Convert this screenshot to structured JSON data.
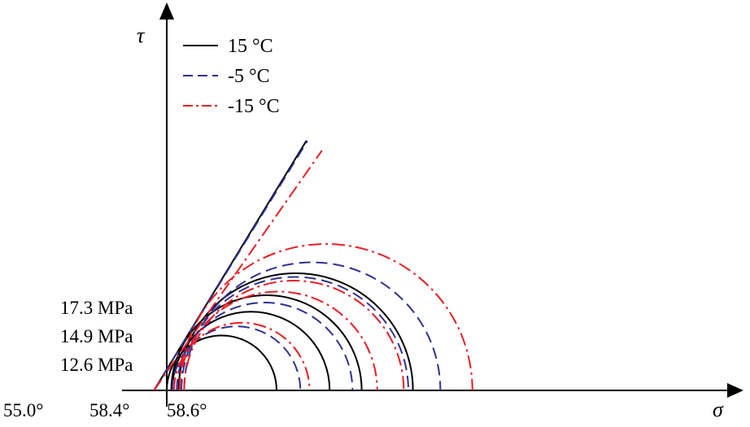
{
  "chart_data": {
    "type": "line",
    "title": "",
    "xlabel": "σ",
    "ylabel": "τ",
    "grid": false,
    "legend_placement": "top-left",
    "series": [
      {
        "name": "15 °C",
        "color": "#000000",
        "dash": "solid",
        "circles": [
          {
            "center": 3.0,
            "radius": 3.0
          },
          {
            "center": 4.6,
            "radius": 4.3
          },
          {
            "center": 5.45,
            "radius": 5.2
          },
          {
            "center": 7.05,
            "radius": 6.4
          }
        ],
        "envelope": {
          "x_intercept": -0.7,
          "friction_angle_deg": 58.6,
          "cohesion_MPa": 12.6
        }
      },
      {
        "name": "-5 °C",
        "color": "#2e3192",
        "dash": "dashed",
        "circles": [
          {
            "center": 3.8,
            "radius": 3.5
          },
          {
            "center": 5.35,
            "radius": 4.8
          },
          {
            "center": 7.0,
            "radius": 6.2
          },
          {
            "center": 7.95,
            "radius": 7.0
          }
        ],
        "envelope": {
          "x_intercept": -0.7,
          "friction_angle_deg": 58.4,
          "cohesion_MPa": 14.9
        }
      },
      {
        "name": "-15 °C",
        "color": "#ed1c24",
        "dash": "dash-dot",
        "circles": [
          {
            "center": 4.1,
            "radius": 3.7
          },
          {
            "center": 6.1,
            "radius": 5.4
          },
          {
            "center": 6.95,
            "radius": 6.0
          },
          {
            "center": 8.7,
            "radius": 8.0
          }
        ],
        "envelope": {
          "x_intercept": -0.7,
          "friction_angle_deg": 55.0,
          "cohesion_MPa": 17.3
        }
      }
    ],
    "annotations": {
      "cohesion_labels": [
        "17.3 MPa",
        "14.9 MPa",
        "12.6 MPa"
      ],
      "angle_labels": [
        "55.0°",
        "58.4°",
        "58.6°"
      ]
    }
  }
}
